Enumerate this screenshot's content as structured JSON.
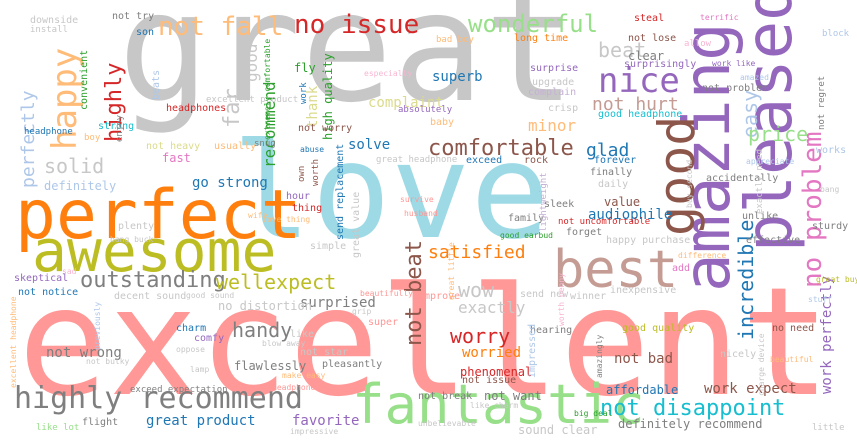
{
  "colors": {
    "gray": "#c7c7c7",
    "pink": "#ff9896",
    "skyblue": "#9edae5",
    "orange": "#ff7f0e",
    "olive": "#bcbd22",
    "purple": "#9467bd",
    "brown": "#8c564b",
    "darkgray": "#7f7f7f",
    "green": "#98df8a",
    "cyan": "#17becf",
    "blue": "#1f77b4",
    "red": "#d62728",
    "lightorange": "#ffbb78",
    "tan": "#c49c94",
    "lavender": "#c5b0d5",
    "lightblue": "#aec7e8",
    "rose": "#f7b6d2",
    "magenta": "#e377c2",
    "paleolive": "#dbdb8d",
    "darkgreen": "#2ca02c"
  },
  "words": [
    {
      "text": "great",
      "color": "gray"
    },
    {
      "text": "excellent",
      "color": "pink"
    },
    {
      "text": "love",
      "color": "skyblue"
    },
    {
      "text": "perfect",
      "color": "orange"
    },
    {
      "text": "awesome",
      "color": "olive"
    },
    {
      "text": "amazing",
      "color": "purple"
    },
    {
      "text": "pleased",
      "color": "purple"
    },
    {
      "text": "fantastic",
      "color": "green"
    },
    {
      "text": "best",
      "color": "tan"
    },
    {
      "text": "good",
      "color": "brown"
    },
    {
      "text": "highly recommend",
      "color": "darkgray"
    },
    {
      "text": "not disappoint",
      "color": "cyan"
    },
    {
      "text": "nice",
      "color": "purple"
    },
    {
      "text": "happy",
      "color": "lightorange"
    },
    {
      "text": "no problem",
      "color": "magenta"
    },
    {
      "text": "outstanding",
      "color": "darkgray"
    },
    {
      "text": "wonderful",
      "color": "green"
    },
    {
      "text": "not fall",
      "color": "lightorange"
    },
    {
      "text": "no issue",
      "color": "red"
    },
    {
      "text": "comfortable",
      "color": "brown"
    },
    {
      "text": "easy",
      "color": "lightblue"
    },
    {
      "text": "highly",
      "color": "red"
    },
    {
      "text": "perfectly",
      "color": "lightblue"
    },
    {
      "text": "solid",
      "color": "gray"
    },
    {
      "text": "satisfied",
      "color": "orange"
    },
    {
      "text": "well",
      "color": "olive"
    },
    {
      "text": "expect",
      "color": "olive"
    },
    {
      "text": "handy",
      "color": "darkgray"
    },
    {
      "text": "not beat",
      "color": "brown"
    },
    {
      "text": "worry",
      "color": "red"
    },
    {
      "text": "wow",
      "color": "gray"
    },
    {
      "text": "incredible",
      "color": "blue"
    },
    {
      "text": "price",
      "color": "green"
    },
    {
      "text": "beat",
      "color": "gray"
    },
    {
      "text": "not hurt",
      "color": "tan"
    },
    {
      "text": "glad",
      "color": "blue"
    },
    {
      "text": "audiophile",
      "color": "blue"
    },
    {
      "text": "value",
      "color": "brown"
    },
    {
      "text": "exactly",
      "color": "gray"
    },
    {
      "text": "recommend",
      "color": "darkgreen"
    },
    {
      "text": "far",
      "color": "gray"
    },
    {
      "text": "good",
      "color": "gray"
    },
    {
      "text": "superb",
      "color": "blue"
    },
    {
      "text": "complaint",
      "color": "paleolive"
    },
    {
      "text": "minor",
      "color": "lightorange"
    },
    {
      "text": "go strong",
      "color": "blue"
    },
    {
      "text": "solve",
      "color": "blue"
    },
    {
      "text": "surprised",
      "color": "darkgray"
    },
    {
      "text": "not wrong",
      "color": "darkgray"
    },
    {
      "text": "worried",
      "color": "orange"
    },
    {
      "text": "flawlessly",
      "color": "darkgray"
    },
    {
      "text": "great product",
      "color": "blue"
    },
    {
      "text": "favorite",
      "color": "purple"
    },
    {
      "text": "not bad",
      "color": "brown"
    },
    {
      "text": "work expect",
      "color": "brown"
    },
    {
      "text": "affordable",
      "color": "blue"
    },
    {
      "text": "work perfectly",
      "color": "purple"
    },
    {
      "text": "definitely",
      "color": "lightblue"
    },
    {
      "text": "thank",
      "color": "paleolive"
    },
    {
      "text": "high quality",
      "color": "darkgreen"
    },
    {
      "text": "no distortion",
      "color": "gray"
    },
    {
      "text": "phenomenal",
      "color": "red"
    },
    {
      "text": "not issue",
      "color": "brown"
    },
    {
      "text": "not want",
      "color": "darkgray"
    },
    {
      "text": "not break",
      "color": "darkgray"
    },
    {
      "text": "definitely recommend",
      "color": "darkgray"
    },
    {
      "text": "sound clear",
      "color": "gray"
    },
    {
      "text": "big deal",
      "color": "darkgreen"
    },
    {
      "text": "unbelievable",
      "color": "gray"
    },
    {
      "text": "impressive",
      "color": "gray"
    },
    {
      "text": "like lot",
      "color": "green"
    },
    {
      "text": "flight",
      "color": "darkgray"
    },
    {
      "text": "little",
      "color": "gray"
    },
    {
      "text": "clear",
      "color": "darkgray"
    },
    {
      "text": "surprisingly",
      "color": "purple"
    },
    {
      "text": "steal",
      "color": "red"
    },
    {
      "text": "terrific",
      "color": "magenta"
    },
    {
      "text": "not lose",
      "color": "brown"
    },
    {
      "text": "allow",
      "color": "rose"
    },
    {
      "text": "complain",
      "color": "lavender"
    },
    {
      "text": "upgrade",
      "color": "gray"
    },
    {
      "text": "surprise",
      "color": "purple"
    },
    {
      "text": "crisp",
      "color": "gray"
    },
    {
      "text": "long time",
      "color": "orange"
    },
    {
      "text": "bad boy",
      "color": "lightorange"
    },
    {
      "text": "not try",
      "color": "darkgray"
    },
    {
      "text": "son",
      "color": "blue"
    },
    {
      "text": "downside",
      "color": "gray"
    },
    {
      "text": "install",
      "color": "gray"
    },
    {
      "text": "convenient",
      "color": "darkgreen"
    },
    {
      "text": "headphone",
      "color": "blue"
    },
    {
      "text": "strong",
      "color": "cyan"
    },
    {
      "text": "beats",
      "color": "lightblue"
    },
    {
      "text": "headphones",
      "color": "red"
    },
    {
      "text": "excellent product",
      "color": "gray"
    },
    {
      "text": "extremely comfortable",
      "color": "darkgreen"
    },
    {
      "text": "work",
      "color": "blue"
    },
    {
      "text": "fly",
      "color": "darkgreen"
    },
    {
      "text": "absolutely",
      "color": "purple"
    },
    {
      "text": "especially",
      "color": "rose"
    },
    {
      "text": "not worry",
      "color": "brown"
    },
    {
      "text": "baby",
      "color": "lightorange"
    },
    {
      "text": "good headphone",
      "color": "cyan"
    },
    {
      "text": "not heavy",
      "color": "paleolive"
    },
    {
      "text": "fast",
      "color": "magenta"
    },
    {
      "text": "usually",
      "color": "lightorange"
    },
    {
      "text": "enjoy",
      "color": "darkgray"
    },
    {
      "text": "boy",
      "color": "lightorange"
    },
    {
      "text": "snug",
      "color": "darkgray"
    },
    {
      "text": "rock",
      "color": "brown"
    },
    {
      "text": "forever",
      "color": "blue"
    },
    {
      "text": "finally",
      "color": "darkgray"
    },
    {
      "text": "daily",
      "color": "gray"
    },
    {
      "text": "exceed",
      "color": "blue"
    },
    {
      "text": "great headphone",
      "color": "gray"
    },
    {
      "text": "send replacement",
      "color": "blue"
    },
    {
      "text": "great value",
      "color": "gray"
    },
    {
      "text": "thing",
      "color": "red"
    },
    {
      "text": "own",
      "color": "brown"
    },
    {
      "text": "worth",
      "color": "brown"
    },
    {
      "text": "hour",
      "color": "purple"
    },
    {
      "text": "survive",
      "color": "pink"
    },
    {
      "text": "husband",
      "color": "pink"
    },
    {
      "text": "family",
      "color": "darkgray"
    },
    {
      "text": "lightweight",
      "color": "lavender"
    },
    {
      "text": "forget",
      "color": "darkgray"
    },
    {
      "text": "good earbud",
      "color": "darkgreen"
    },
    {
      "text": "happy purchase",
      "color": "gray"
    },
    {
      "text": "not uncomfortable",
      "color": "red"
    },
    {
      "text": "effective",
      "color": "darkgray"
    },
    {
      "text": "sleek",
      "color": "darkgray"
    },
    {
      "text": "simple",
      "color": "gray"
    },
    {
      "text": "love thing",
      "color": "lightorange"
    },
    {
      "text": "wife",
      "color": "lightorange"
    },
    {
      "text": "plenty",
      "color": "gray"
    },
    {
      "text": "bang buck",
      "color": "gray"
    },
    {
      "text": "sad",
      "color": "rose"
    },
    {
      "text": "skeptical",
      "color": "purple"
    },
    {
      "text": "not notice",
      "color": "blue"
    },
    {
      "text": "decent sound",
      "color": "gray"
    },
    {
      "text": "good sound",
      "color": "gray"
    },
    {
      "text": "improve",
      "color": "pink"
    },
    {
      "text": "send new",
      "color": "gray"
    },
    {
      "text": "winner",
      "color": "gray"
    },
    {
      "text": "inexpensive",
      "color": "gray"
    },
    {
      "text": "charm",
      "color": "blue"
    },
    {
      "text": "comfy",
      "color": "purple"
    },
    {
      "text": "oppose",
      "color": "gray"
    },
    {
      "text": "lamp",
      "color": "gray"
    },
    {
      "text": "blow away",
      "color": "gray"
    },
    {
      "text": "not star",
      "color": "gray"
    },
    {
      "text": "pleasantly",
      "color": "darkgray"
    },
    {
      "text": "like",
      "color": "gray"
    },
    {
      "text": "hearing",
      "color": "darkgray"
    },
    {
      "text": "impressed",
      "color": "lightblue"
    },
    {
      "text": "good quality",
      "color": "olive"
    },
    {
      "text": "nicely",
      "color": "gray"
    },
    {
      "text": "no need",
      "color": "brown"
    },
    {
      "text": "exceed expectation",
      "color": "darkgray"
    },
    {
      "text": "headphone own",
      "color": "pink"
    },
    {
      "text": "make easy",
      "color": "lightorange"
    },
    {
      "text": "like charm",
      "color": "gray"
    },
    {
      "text": "excellent headphone",
      "color": "lightorange"
    },
    {
      "text": "beautiful",
      "color": "lightorange"
    },
    {
      "text": "not bulky",
      "color": "gray"
    },
    {
      "text": "block",
      "color": "lightblue"
    },
    {
      "text": "not regret",
      "color": "darkgray"
    },
    {
      "text": "works",
      "color": "lightblue"
    },
    {
      "text": "bang",
      "color": "gray"
    },
    {
      "text": "sturdy",
      "color": "darkgray"
    },
    {
      "text": "great buy",
      "color": "olive"
    },
    {
      "text": "gift",
      "color": "pink"
    },
    {
      "text": "stuff",
      "color": "lightblue"
    },
    {
      "text": "accidentally",
      "color": "darkgray"
    },
    {
      "text": "unlike",
      "color": "darkgray"
    },
    {
      "text": "difference",
      "color": "lightorange"
    },
    {
      "text": "appreciate",
      "color": "lightblue"
    },
    {
      "text": "work like",
      "color": "purple"
    },
    {
      "text": "amazed",
      "color": "lightblue"
    },
    {
      "text": "not problem",
      "color": "darkgray"
    },
    {
      "text": "exactly need",
      "color": "gray"
    },
    {
      "text": "buy second",
      "color": "gray"
    },
    {
      "text": "amazingly",
      "color": "darkgray"
    },
    {
      "text": "worth penny",
      "color": "rose"
    },
    {
      "text": "previously",
      "color": "lightblue"
    },
    {
      "text": "great little",
      "color": "lightorange"
    },
    {
      "text": "charge device",
      "color": "gray"
    },
    {
      "text": "super",
      "color": "pink"
    },
    {
      "text": "beautifully",
      "color": "pink"
    },
    {
      "text": "abuse",
      "color": "blue"
    },
    {
      "text": "add",
      "color": "magenta"
    },
    {
      "text": "grip",
      "color": "gray"
    }
  ]
}
